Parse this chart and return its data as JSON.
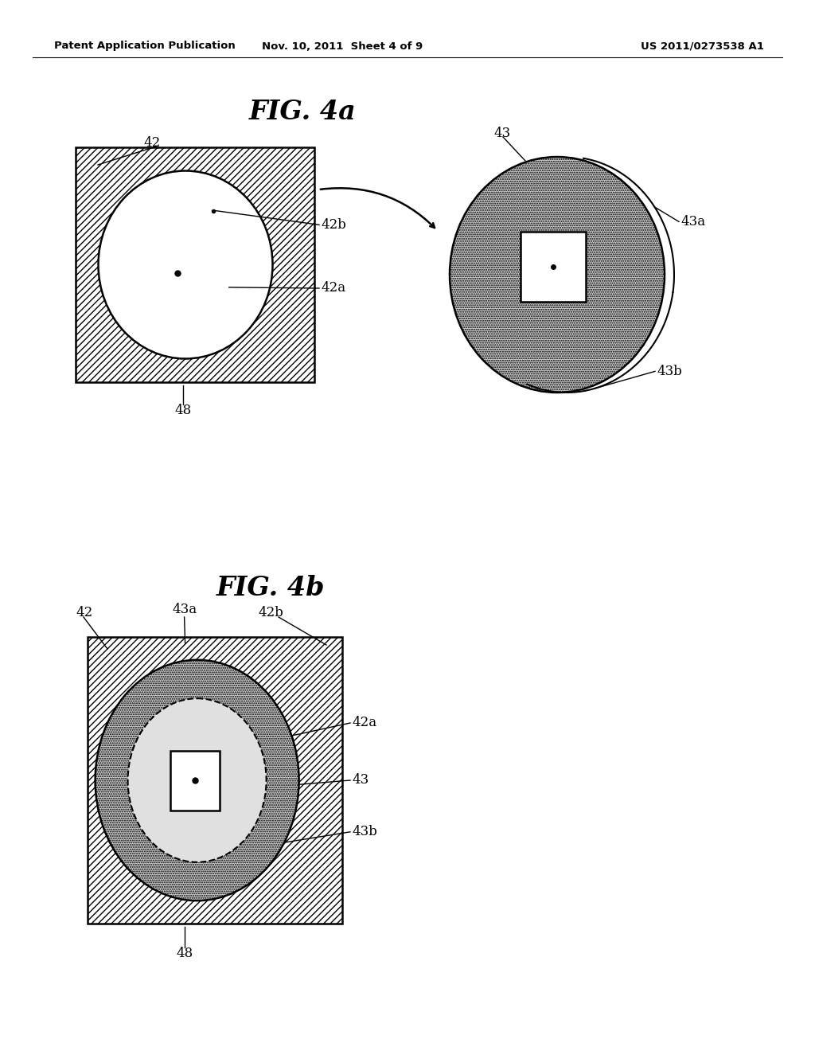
{
  "bg_color": "#ffffff",
  "header_left": "Patent Application Publication",
  "header_mid": "Nov. 10, 2011  Sheet 4 of 9",
  "header_right": "US 2011/0273538 A1",
  "fig4a_title": "FIG. 4a",
  "fig4b_title": "FIG. 4b"
}
